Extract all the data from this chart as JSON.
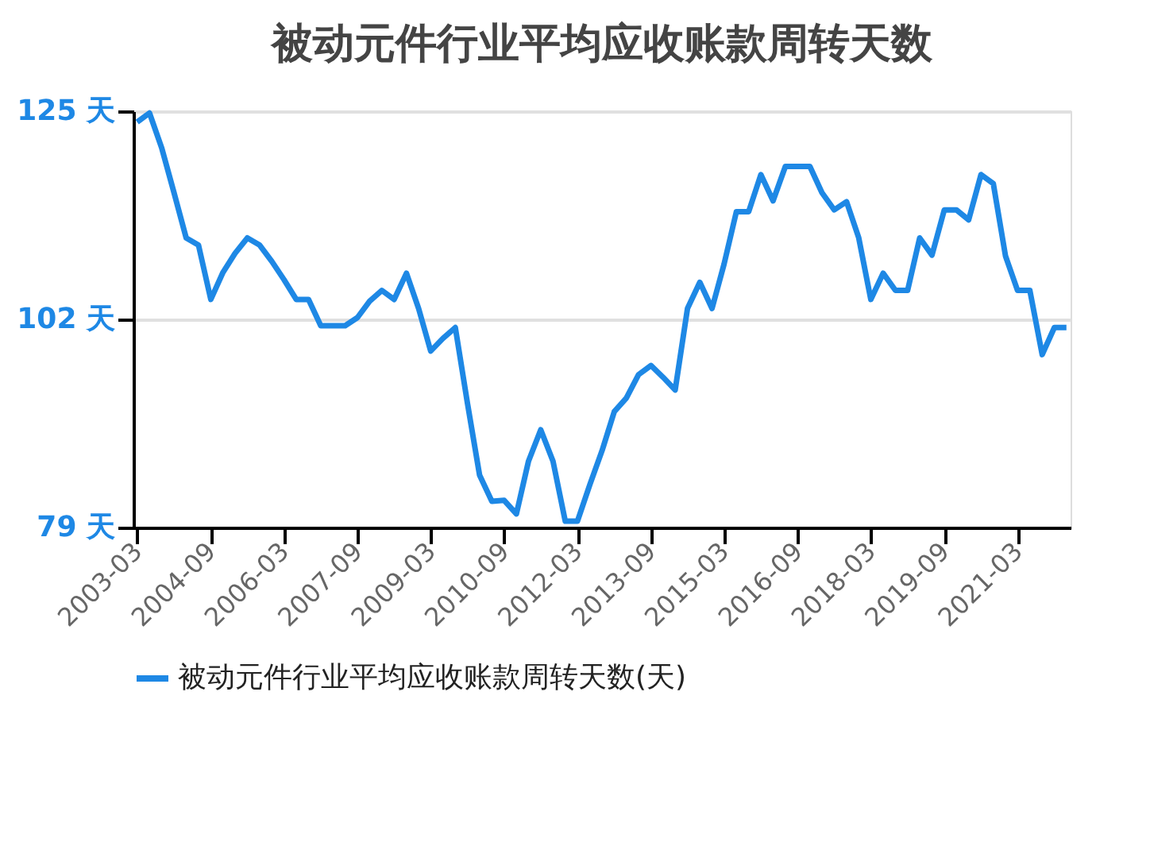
{
  "chart_data": {
    "type": "line",
    "title": "被动元件行业平均应收账款周转天数",
    "x": [
      "2003-03",
      "2003-06",
      "2003-09",
      "2003-12",
      "2004-03",
      "2004-06",
      "2004-09",
      "2004-12",
      "2005-03",
      "2005-06",
      "2005-09",
      "2005-12",
      "2006-03",
      "2006-06",
      "2006-09",
      "2006-12",
      "2007-03",
      "2007-06",
      "2007-09",
      "2007-12",
      "2008-03",
      "2008-06",
      "2008-09",
      "2008-12",
      "2009-03",
      "2009-06",
      "2009-09",
      "2009-12",
      "2010-03",
      "2010-06",
      "2010-09",
      "2010-12",
      "2011-03",
      "2011-06",
      "2011-09",
      "2011-12",
      "2012-03",
      "2012-06",
      "2012-09",
      "2012-12",
      "2013-03",
      "2013-06",
      "2013-09",
      "2013-12",
      "2014-03",
      "2014-06",
      "2014-09",
      "2014-12",
      "2015-03",
      "2015-06",
      "2015-09",
      "2015-12",
      "2016-03",
      "2016-06",
      "2016-09",
      "2016-12",
      "2017-03",
      "2017-06",
      "2017-09",
      "2017-12",
      "2018-03",
      "2018-06",
      "2018-09",
      "2018-12",
      "2019-03",
      "2019-06",
      "2019-09",
      "2019-12",
      "2020-03",
      "2020-06",
      "2020-09",
      "2020-12",
      "2021-03",
      "2021-06",
      "2021-09",
      "2021-12",
      "2022-03"
    ],
    "series": [
      {
        "name": "被动元件行业平均应收账款周转天数(天)",
        "color": "#1e88e5",
        "values": [
          123.8,
          124.8,
          120.9,
          116.0,
          111.0,
          110.2,
          104.2,
          107.2,
          109.3,
          111.0,
          110.2,
          108.4,
          106.4,
          104.2,
          104.2,
          101.3,
          101.3,
          101.3,
          102.2,
          104.0,
          105.2,
          104.2,
          107.1,
          103.2,
          98.5,
          99.9,
          101.1,
          92.7,
          84.8,
          81.9,
          82.0,
          80.5,
          86.3,
          89.8,
          86.3,
          79.7,
          79.7,
          83.7,
          87.5,
          91.8,
          93.3,
          95.9,
          96.9,
          95.6,
          94.2,
          103.2,
          106.1,
          103.2,
          108.1,
          113.9,
          113.9,
          118.0,
          115.1,
          118.9,
          118.9,
          118.9,
          116.0,
          114.1,
          115.0,
          111.0,
          104.2,
          107.1,
          105.2,
          105.2,
          111.0,
          109.1,
          114.1,
          114.1,
          113.0,
          118.0,
          117.0,
          109.0,
          105.2,
          105.2,
          98.1,
          101.1,
          101.1
        ]
      }
    ],
    "xlim": [
      "2003-02",
      "2022-04"
    ],
    "xticks": [
      "2003-03",
      "2004-09",
      "2006-03",
      "2007-09",
      "2009-03",
      "2010-09",
      "2012-03",
      "2013-09",
      "2015-03",
      "2016-09",
      "2018-03",
      "2019-09",
      "2021-03"
    ],
    "ylim": [
      79,
      125
    ],
    "yticks": [
      {
        "value": 79,
        "label": "79 天"
      },
      {
        "value": 102,
        "label": "102 天"
      },
      {
        "value": 125,
        "label": "125 天"
      }
    ],
    "grid": "y",
    "legend": "bottom",
    "marker": "none",
    "line_style": "solid"
  }
}
